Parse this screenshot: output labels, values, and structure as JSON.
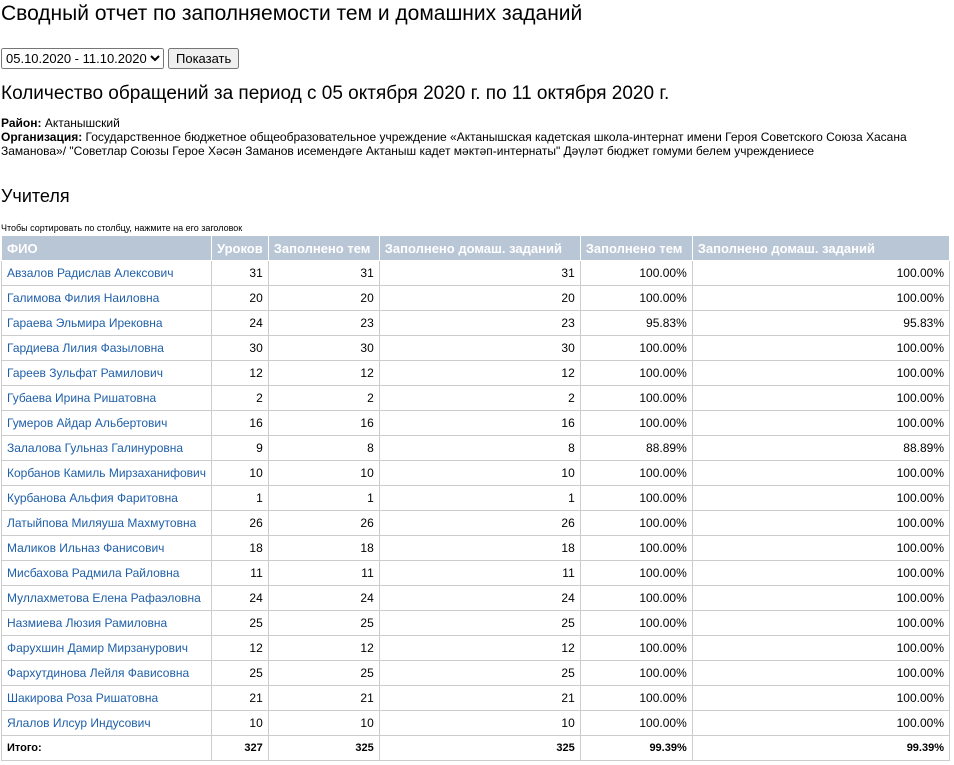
{
  "header": {
    "title": "Сводный отчет по заполняемости тем и домашних заданий"
  },
  "filter": {
    "period": "05.10.2020 - 11.10.2020",
    "button": "Показать"
  },
  "subtitle": "Количество обращений за период с 05 октября 2020 г. по 11 октября 2020 г.",
  "info": {
    "district_label": "Район:",
    "district": "Актанышский",
    "org_label": "Организация:",
    "org": "Государственное бюджетное общеобразовательное учреждение «Актанышская кадетская школа-интернат имени Героя Советского Союза Хасана Заманова»/ \"Советлар Союзы Герое Хәсән Заманов исемендәге Актаныш кадет мәктәп-интернаты\" Дәүләт бюджет гомуми белем учреждениесе"
  },
  "section": "Учителя",
  "hint": "Чтобы сортировать по столбцу, нажмите на его заголовок",
  "table": {
    "headers": [
      "ФИО",
      "Уроков",
      "Заполнено тем",
      "Заполнено домаш. заданий",
      "Заполнено тем",
      "Заполнено домаш. заданий"
    ],
    "rows": [
      [
        "Авзалов Радислав Алексович",
        31,
        31,
        31,
        "100.00%",
        "100.00%"
      ],
      [
        "Галимова Филия Наиловна",
        20,
        20,
        20,
        "100.00%",
        "100.00%"
      ],
      [
        "Гараева Эльмира Ирековна",
        24,
        23,
        23,
        "95.83%",
        "95.83%"
      ],
      [
        "Гардиева Лилия Фазыловна",
        30,
        30,
        30,
        "100.00%",
        "100.00%"
      ],
      [
        "Гареев Зульфат Рамилович",
        12,
        12,
        12,
        "100.00%",
        "100.00%"
      ],
      [
        "Губаева Ирина Ришатовна",
        2,
        2,
        2,
        "100.00%",
        "100.00%"
      ],
      [
        "Гумеров Айдар Альбертович",
        16,
        16,
        16,
        "100.00%",
        "100.00%"
      ],
      [
        "Залалова Гульназ Галинуровна",
        9,
        8,
        8,
        "88.89%",
        "88.89%"
      ],
      [
        "Корбанов Камиль Мирзаханифович",
        10,
        10,
        10,
        "100.00%",
        "100.00%"
      ],
      [
        "Курбанова Альфия Фаритовна",
        1,
        1,
        1,
        "100.00%",
        "100.00%"
      ],
      [
        "Латыйпова Миляуша Махмутовна",
        26,
        26,
        26,
        "100.00%",
        "100.00%"
      ],
      [
        "Маликов Ильназ Фанисович",
        18,
        18,
        18,
        "100.00%",
        "100.00%"
      ],
      [
        "Мисбахова Радмила Райловна",
        11,
        11,
        11,
        "100.00%",
        "100.00%"
      ],
      [
        "Муллахметова Елена Рафаэловна",
        24,
        24,
        24,
        "100.00%",
        "100.00%"
      ],
      [
        "Назмиева Люзия Рамиловна",
        25,
        25,
        25,
        "100.00%",
        "100.00%"
      ],
      [
        "Фарухшин Дамир Мирзанурович",
        12,
        12,
        12,
        "100.00%",
        "100.00%"
      ],
      [
        "Фархутдинова Лейля Фависовна",
        25,
        25,
        25,
        "100.00%",
        "100.00%"
      ],
      [
        "Шакирова Роза Ришатовна",
        21,
        21,
        21,
        "100.00%",
        "100.00%"
      ],
      [
        "Ялалов Илсур Индусович",
        10,
        10,
        10,
        "100.00%",
        "100.00%"
      ]
    ],
    "total": [
      "Итого:",
      327,
      325,
      325,
      "99.39%",
      "99.39%"
    ]
  }
}
